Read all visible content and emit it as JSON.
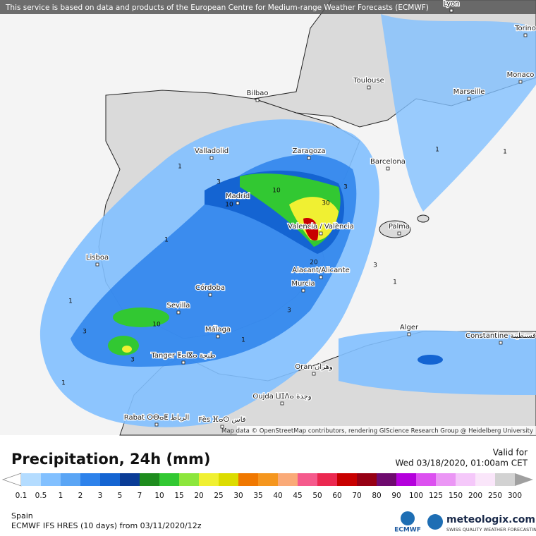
{
  "banner": "This service is based on data and products of the European Centre for Medium-range Weather Forecasts (ECMWF)",
  "map": {
    "cities": [
      "Lyon",
      "Torino",
      "Monaco",
      "Marseille",
      "Toulouse",
      "Bilbao",
      "Valladolid",
      "Zaragoza",
      "Barcelona",
      "Madrid",
      "Valencia / València",
      "Palma",
      "Lisboa",
      "Alacant/Alicante",
      "Murcia",
      "Córdoba",
      "Sevilla",
      "Málaga",
      "Alger",
      "Constantine قسنطينة",
      "Tanger ⵟⴰⵏⴵⴰ طنجة",
      "Oran وهران",
      "Oujda ⵡⵊⴷⴰ وجدة",
      "Rabat ⵔⴱⴰⵟ الرباط",
      "Fès ⴼⴰⵙ فاس"
    ],
    "contour_labels": [
      "1",
      "3",
      "10",
      "10",
      "30",
      "3",
      "20",
      "3",
      "1",
      "1",
      "3",
      "10",
      "3",
      "3",
      "1",
      "1",
      "1",
      "1",
      "1"
    ],
    "attribution": "Map data © OpenStreetMap contributors, rendering GIScience Research Group @ Heidelberg University"
  },
  "footer": {
    "title": "Precipitation, 24h (mm)",
    "valid_label": "Valid for",
    "valid_time": "Wed 03/18/2020, 01:00am CET",
    "region": "Spain",
    "model": "ECMWF IFS HRES (10 days) from 03/11/2020/12z",
    "ecmwf": "ECMWF",
    "brand": "meteologix.com",
    "tagline": "SWISS QUALITY WEATHER FORECASTING"
  },
  "colorbar": {
    "levels": [
      0.1,
      0.5,
      1,
      2,
      3,
      5,
      7,
      10,
      15,
      20,
      25,
      30,
      35,
      40,
      45,
      50,
      60,
      70,
      80,
      90,
      100,
      125,
      150,
      200,
      250,
      300
    ],
    "colors": [
      "#ffffff",
      "#b4dcff",
      "#82c0ff",
      "#5aa5f5",
      "#2d82eb",
      "#1464d2",
      "#0a3c96",
      "#1e8c1e",
      "#32c832",
      "#8ce63c",
      "#f0f032",
      "#dcdc00",
      "#f07800",
      "#f5961e",
      "#faaa78",
      "#f55a8c",
      "#eb2850",
      "#c80000",
      "#960014",
      "#6e0a6e",
      "#b400dc",
      "#dc50f0",
      "#eb96f5",
      "#f5c8fa",
      "#fae6fa",
      "#d2d2d2",
      "#a0a0a0"
    ]
  }
}
